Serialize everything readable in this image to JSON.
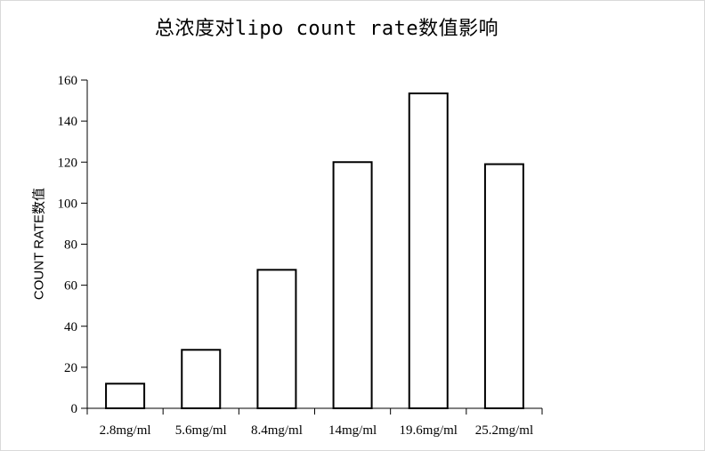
{
  "chart_data": {
    "type": "bar",
    "title": "总浓度对lipo count rate数值影响",
    "xlabel": "",
    "ylabel": "COUNT RATE数值",
    "categories": [
      "2.8mg/ml",
      "5.6mg/ml",
      "8.4mg/ml",
      "14mg/ml",
      "19.6mg/ml",
      "25.2mg/ml"
    ],
    "values": [
      12,
      28.5,
      67.5,
      120,
      153.5,
      119
    ],
    "ylim": [
      0,
      160
    ],
    "yticks": [
      0,
      20,
      40,
      60,
      80,
      100,
      120,
      140,
      160
    ],
    "grid": false,
    "bar_fill": "#ffffff",
    "bar_stroke": "#000000"
  }
}
